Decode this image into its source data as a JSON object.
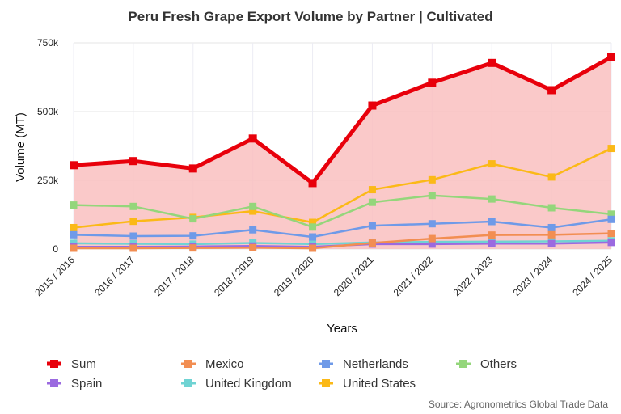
{
  "chart_data": {
    "type": "line",
    "title": "Peru Fresh Grape Export Volume by Partner | Cultivated",
    "xlabel": "Years",
    "ylabel": "Volume (MT)",
    "ylim": [
      0,
      750000
    ],
    "yticks": [
      {
        "value": 0,
        "label": "0"
      },
      {
        "value": 250000,
        "label": "250k"
      },
      {
        "value": 500000,
        "label": "500k"
      },
      {
        "value": 750000,
        "label": "750k"
      }
    ],
    "categories": [
      "2015 / 2016",
      "2016 / 2017",
      "2017 / 2018",
      "2018 / 2019",
      "2019 / 2020",
      "2020 / 2021",
      "2021 / 2022",
      "2022 / 2023",
      "2023 / 2024",
      "2024 / 2025"
    ],
    "grid": true,
    "legend_position": "bottom",
    "source": "Source: Agronometrics Global Trade Data",
    "series": [
      {
        "name": "Sum",
        "color": "#e8000b",
        "area": true,
        "values": [
          305000,
          320000,
          293000,
          402000,
          240000,
          522000,
          605000,
          677000,
          578000,
          698000
        ]
      },
      {
        "name": "Mexico",
        "color": "#f28e52",
        "values": [
          3000,
          3000,
          4000,
          5000,
          3000,
          22000,
          38000,
          51000,
          52000,
          57000
        ]
      },
      {
        "name": "Netherlands",
        "color": "#6f9ae8",
        "values": [
          52000,
          47000,
          48000,
          70000,
          44000,
          85000,
          92000,
          100000,
          78000,
          108000
        ]
      },
      {
        "name": "Others",
        "color": "#94d67b",
        "values": [
          160000,
          155000,
          110000,
          155000,
          80000,
          170000,
          195000,
          182000,
          150000,
          127000
        ]
      },
      {
        "name": "Spain",
        "color": "#9b6ae0",
        "values": [
          8000,
          8000,
          9000,
          11000,
          8000,
          18000,
          18000,
          20000,
          20000,
          24000
        ]
      },
      {
        "name": "United Kingdom",
        "color": "#6fd3d3",
        "values": [
          21000,
          19000,
          18000,
          22000,
          18000,
          24000,
          26000,
          27000,
          28000,
          30000
        ]
      },
      {
        "name": "United States",
        "color": "#fbb917",
        "values": [
          78000,
          101000,
          115000,
          138000,
          97000,
          216000,
          252000,
          310000,
          262000,
          366000
        ]
      }
    ]
  }
}
